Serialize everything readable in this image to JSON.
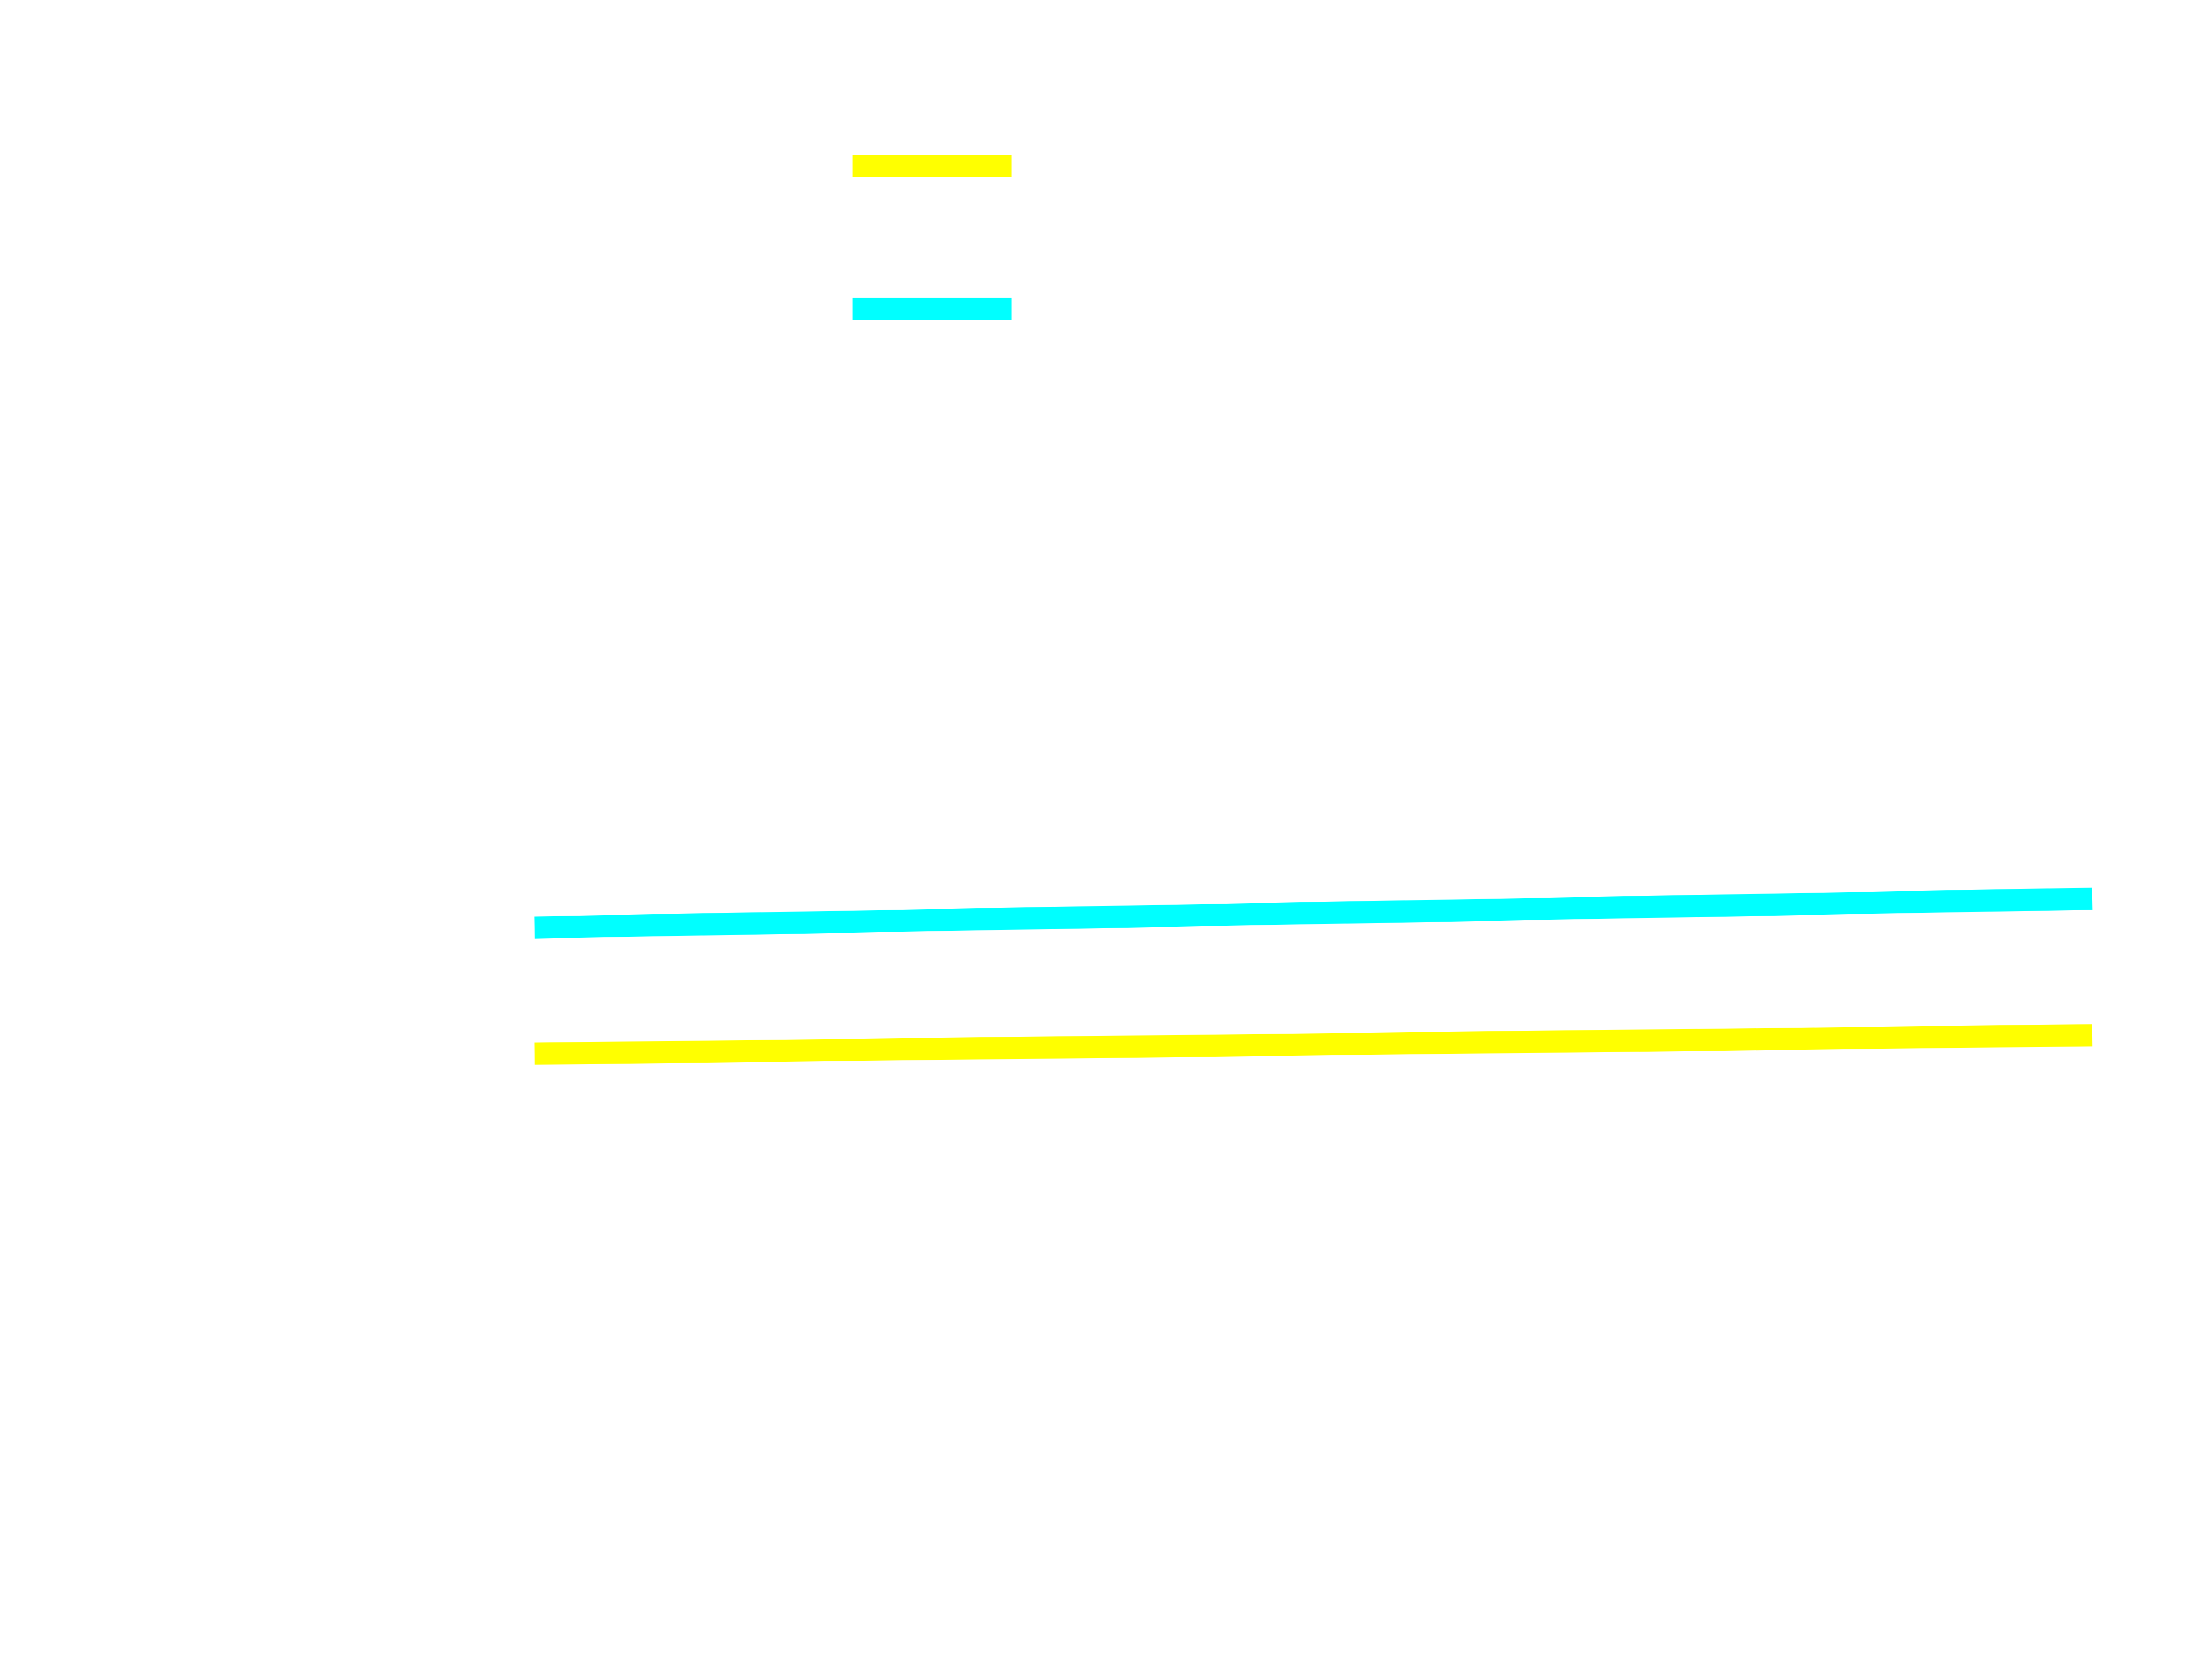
{
  "chart_data": {
    "type": "line",
    "title": "",
    "xlabel": "",
    "ylabel": "",
    "grid": false,
    "legend_position": "top-left",
    "xlim": [
      0,
      1
    ],
    "ylim": [
      0,
      1
    ],
    "series": [
      {
        "color": "#ffff00",
        "x": [
          0,
          1
        ],
        "y": [
          0.303,
          0.317
        ]
      },
      {
        "color": "#00ffff",
        "x": [
          0,
          1
        ],
        "y": [
          0.399,
          0.421
        ]
      }
    ]
  }
}
